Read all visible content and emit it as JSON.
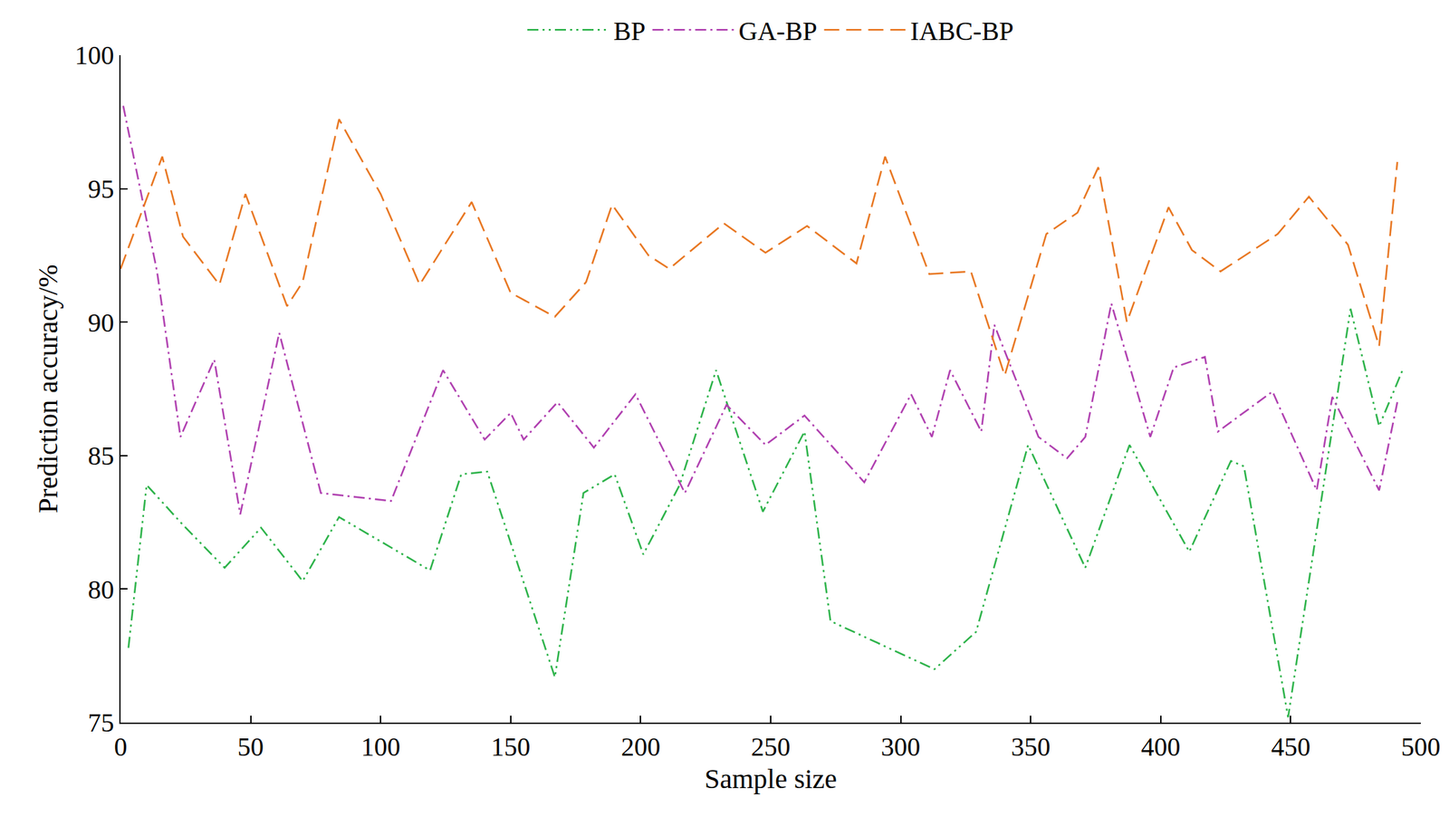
{
  "chart_data": {
    "type": "line",
    "x_label": "Sample size",
    "y_label": "Prediction accuracy/%",
    "xlim": [
      0,
      500
    ],
    "xticks": [
      0,
      50,
      100,
      150,
      200,
      250,
      300,
      350,
      400,
      450,
      500
    ],
    "ylim": [
      75,
      100
    ],
    "yticks": [
      75,
      80,
      85,
      90,
      95,
      100
    ],
    "grid": false,
    "legend": "top",
    "series": [
      {
        "name": "BP",
        "color": "#2db34a",
        "line_style": "dashdotdot",
        "x": [
          3,
          10,
          24,
          40,
          54,
          70,
          84,
          119,
          131,
          141,
          167,
          178,
          190,
          201,
          215,
          229,
          247,
          263,
          273,
          313,
          329,
          349,
          371,
          388,
          411,
          427,
          432,
          449,
          473,
          484,
          493
        ],
        "values": [
          77.8,
          83.9,
          82.4,
          80.8,
          82.3,
          80.3,
          82.7,
          80.7,
          84.3,
          84.4,
          76.7,
          83.6,
          84.3,
          81.3,
          83.9,
          88.2,
          82.9,
          85.9,
          78.8,
          77.0,
          78.4,
          85.4,
          80.8,
          85.4,
          81.4,
          84.8,
          84.6,
          75.2,
          90.5,
          86.1,
          88.2
        ]
      },
      {
        "name": "GA-BP",
        "color": "#b040b0",
        "line_style": "dashdot",
        "x": [
          1,
          14,
          23,
          36,
          46,
          61,
          77,
          104,
          124,
          140,
          150,
          155,
          168,
          182,
          198,
          217,
          233,
          248,
          263,
          286,
          304,
          312,
          319,
          331,
          336,
          353,
          364,
          371,
          381,
          396,
          405,
          417,
          422,
          443,
          460,
          466,
          484,
          491
        ],
        "values": [
          98.1,
          91.9,
          85.7,
          88.6,
          82.8,
          89.6,
          83.6,
          83.3,
          88.2,
          85.6,
          86.6,
          85.6,
          87.0,
          85.3,
          87.3,
          83.6,
          86.9,
          85.4,
          86.5,
          84.0,
          87.3,
          85.7,
          88.2,
          85.9,
          89.9,
          85.7,
          84.9,
          85.7,
          90.7,
          85.7,
          88.3,
          88.7,
          85.9,
          87.4,
          83.7,
          87.2,
          83.7,
          87.0
        ]
      },
      {
        "name": "IABC-BP",
        "color": "#e87722",
        "line_style": "dashed",
        "x": [
          0,
          16,
          24,
          38,
          48,
          64,
          70,
          84,
          100,
          115,
          135,
          150,
          167,
          179,
          189,
          203,
          211,
          232,
          248,
          264,
          283,
          294,
          311,
          327,
          340,
          356,
          368,
          376,
          387,
          403,
          412,
          423,
          445,
          457,
          472,
          484,
          491
        ],
        "values": [
          92.0,
          96.2,
          93.2,
          91.4,
          94.8,
          90.6,
          91.5,
          97.6,
          94.8,
          91.4,
          94.5,
          91.1,
          90.2,
          91.5,
          94.4,
          92.5,
          92.0,
          93.7,
          92.6,
          93.6,
          92.2,
          96.2,
          91.8,
          91.9,
          88.0,
          93.3,
          94.1,
          95.8,
          90.0,
          94.3,
          92.7,
          91.9,
          93.3,
          94.7,
          92.9,
          89.1,
          96.0
        ]
      }
    ]
  }
}
